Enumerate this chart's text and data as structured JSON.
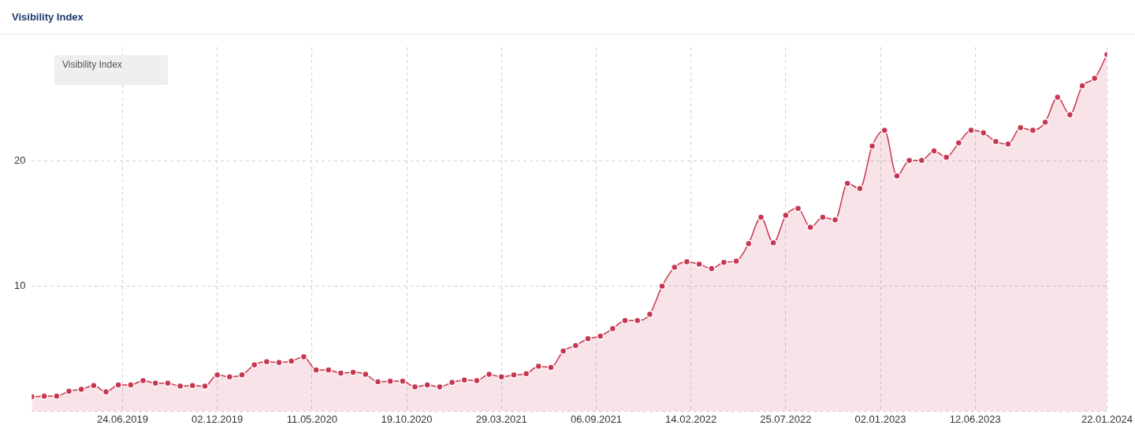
{
  "chart_data": {
    "type": "area",
    "title": "Visibility Index",
    "x": [
      "2019-01-21",
      "2019-02-11",
      "2019-03-04",
      "2019-03-25",
      "2019-04-15",
      "2019-05-06",
      "2019-05-27",
      "2019-06-17",
      "2019-07-08",
      "2019-07-29",
      "2019-08-19",
      "2019-09-09",
      "2019-09-30",
      "2019-10-21",
      "2019-11-11",
      "2019-12-02",
      "2019-12-23",
      "2020-01-13",
      "2020-02-03",
      "2020-02-24",
      "2020-03-16",
      "2020-04-06",
      "2020-04-27",
      "2020-05-18",
      "2020-06-08",
      "2020-06-29",
      "2020-07-20",
      "2020-08-10",
      "2020-08-31",
      "2020-09-21",
      "2020-10-12",
      "2020-11-02",
      "2020-11-23",
      "2020-12-14",
      "2021-01-04",
      "2021-01-25",
      "2021-02-15",
      "2021-03-08",
      "2021-03-29",
      "2021-04-19",
      "2021-05-10",
      "2021-05-31",
      "2021-06-21",
      "2021-07-12",
      "2021-08-02",
      "2021-08-23",
      "2021-09-13",
      "2021-10-04",
      "2021-10-25",
      "2021-11-15",
      "2021-12-06",
      "2021-12-27",
      "2022-01-17",
      "2022-02-07",
      "2022-02-28",
      "2022-03-21",
      "2022-04-11",
      "2022-05-02",
      "2022-05-23",
      "2022-06-13",
      "2022-07-04",
      "2022-07-25",
      "2022-08-15",
      "2022-09-05",
      "2022-09-26",
      "2022-10-17",
      "2022-11-07",
      "2022-11-28",
      "2022-12-19",
      "2023-01-09",
      "2023-01-30",
      "2023-02-20",
      "2023-03-13",
      "2023-04-03",
      "2023-04-24",
      "2023-05-15",
      "2023-06-05",
      "2023-06-26",
      "2023-07-17",
      "2023-08-07",
      "2023-08-28",
      "2023-09-18",
      "2023-10-09",
      "2023-10-30",
      "2023-11-20",
      "2023-12-11",
      "2024-01-01",
      "2024-01-22"
    ],
    "series": [
      {
        "color": "#c8374f",
        "values": [
          1.15,
          1.2,
          1.2,
          1.6,
          1.75,
          2.05,
          1.55,
          2.1,
          2.1,
          2.45,
          2.25,
          2.25,
          2.0,
          2.05,
          2.0,
          2.9,
          2.75,
          2.9,
          3.7,
          3.95,
          3.9,
          4.0,
          4.35,
          3.3,
          3.3,
          3.05,
          3.1,
          2.95,
          2.35,
          2.4,
          2.4,
          1.95,
          2.1,
          1.95,
          2.3,
          2.5,
          2.45,
          2.95,
          2.75,
          2.9,
          3.0,
          3.6,
          3.5,
          4.8,
          5.25,
          5.8,
          6.0,
          6.6,
          7.25,
          7.25,
          7.75,
          10.0,
          11.5,
          11.95,
          11.75,
          11.4,
          11.9,
          12.0,
          13.4,
          15.5,
          13.45,
          15.65,
          16.2,
          14.7,
          15.5,
          15.3,
          18.2,
          17.8,
          21.2,
          22.45,
          18.8,
          20.05,
          20.05,
          20.8,
          20.3,
          21.45,
          22.45,
          22.25,
          21.55,
          21.35,
          22.65,
          22.45,
          23.1,
          25.1,
          23.7,
          26.0,
          26.6,
          28.5
        ]
      }
    ],
    "xlim": [
      "2019-01-21",
      "2024-01-22"
    ],
    "xticks": [
      {
        "value": "2019-06-24",
        "label": "24.06.2019"
      },
      {
        "value": "2019-12-02",
        "label": "02.12.2019"
      },
      {
        "value": "2020-05-11",
        "label": "11.05.2020"
      },
      {
        "value": "2020-10-19",
        "label": "19.10.2020"
      },
      {
        "value": "2021-03-29",
        "label": "29.03.2021"
      },
      {
        "value": "2021-09-06",
        "label": "06.09.2021"
      },
      {
        "value": "2022-02-14",
        "label": "14.02.2022"
      },
      {
        "value": "2022-07-25",
        "label": "25.07.2022"
      },
      {
        "value": "2023-01-02",
        "label": "02.01.2023"
      },
      {
        "value": "2023-06-12",
        "label": "12.06.2023"
      },
      {
        "value": "2024-01-22",
        "label": "22.01.2024"
      }
    ],
    "ylim": [
      0,
      29.1
    ],
    "yticks": [
      {
        "value": 0,
        "label": null
      },
      10,
      20
    ],
    "grid": true,
    "line_style": "solid",
    "marker": "circle",
    "annotations": [
      "Visibility Index"
    ]
  }
}
